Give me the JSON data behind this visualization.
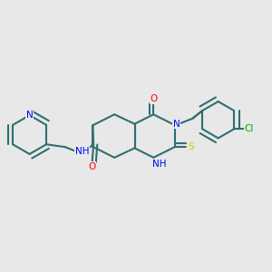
{
  "bg_color": "#e8e8e8",
  "bond_color": "#2f6f6f",
  "bond_width": 1.5,
  "atom_colors": {
    "N": "#0000ff",
    "O": "#ff0000",
    "S": "#cccc00",
    "Cl": "#00aa00",
    "C": "#2f6f6f",
    "H_label": "#888888"
  },
  "font_size": 7.5
}
